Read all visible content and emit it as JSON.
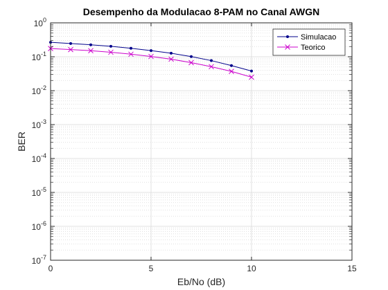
{
  "chart_data": {
    "type": "line",
    "title": "Desempenho da Modulacao 8-PAM no Canal AWGN",
    "xlabel": "Eb/No (dB)",
    "ylabel": "BER",
    "xlim": [
      0,
      15
    ],
    "ylim": [
      1e-07,
      1
    ],
    "yscale": "log",
    "grid": true,
    "minor_grid": true,
    "legend_position": "top-right",
    "x_ticks": [
      {
        "value": 0,
        "label": "0"
      },
      {
        "value": 5,
        "label": "5"
      },
      {
        "value": 10,
        "label": "10"
      },
      {
        "value": 15,
        "label": "15"
      }
    ],
    "y_ticks": [
      {
        "exp": 0,
        "base": "10",
        "power": "0"
      },
      {
        "exp": -1,
        "base": "10",
        "power": "-1"
      },
      {
        "exp": -2,
        "base": "10",
        "power": "-2"
      },
      {
        "exp": -3,
        "base": "10",
        "power": "-3"
      },
      {
        "exp": -4,
        "base": "10",
        "power": "-4"
      },
      {
        "exp": -5,
        "base": "10",
        "power": "-5"
      },
      {
        "exp": -6,
        "base": "10",
        "power": "-6"
      },
      {
        "exp": -7,
        "base": "10",
        "power": "-7"
      }
    ],
    "x": [
      0,
      1,
      2,
      3,
      4,
      5,
      6,
      7,
      8,
      9,
      10
    ],
    "series": [
      {
        "name": "Simulacao",
        "color": "#00008b",
        "marker": "point",
        "values": [
          0.267,
          0.245,
          0.225,
          0.203,
          0.178,
          0.152,
          0.127,
          0.101,
          0.077,
          0.055,
          0.038
        ]
      },
      {
        "name": "Teorico",
        "color": "#cc00cc",
        "marker": "x",
        "values": [
          0.175,
          0.163,
          0.151,
          0.136,
          0.119,
          0.102,
          0.085,
          0.067,
          0.051,
          0.037,
          0.025
        ]
      }
    ]
  }
}
